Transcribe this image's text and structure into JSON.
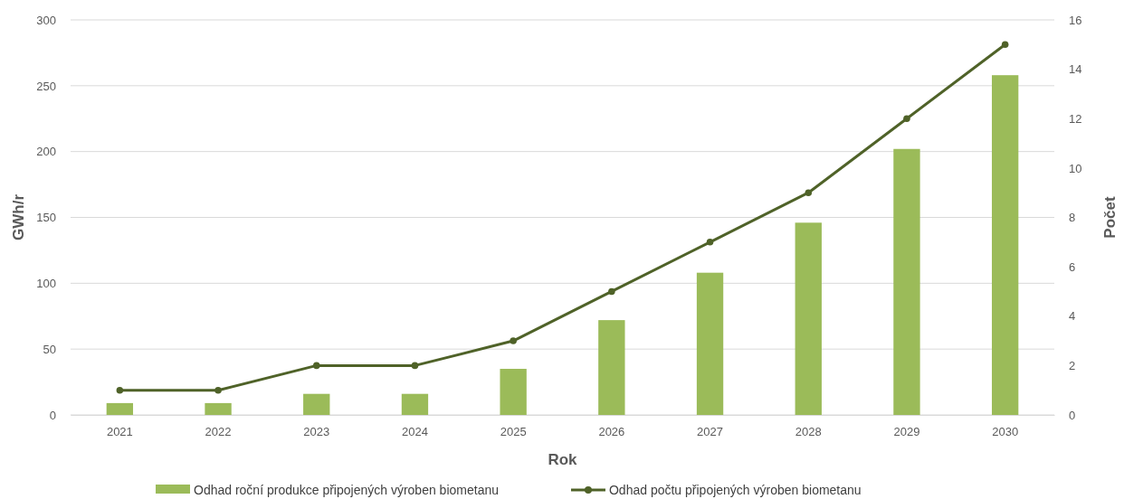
{
  "chart_data": {
    "type": "bar",
    "xlabel": "Rok",
    "ylabel": "GWh/r",
    "y2label": "Počet",
    "categories": [
      "2021",
      "2022",
      "2023",
      "2024",
      "2025",
      "2026",
      "2027",
      "2028",
      "2029",
      "2030"
    ],
    "series": [
      {
        "name": "Odhad roční produkce připojených výroben biometanu",
        "color": "#9bbb59",
        "values": [
          9,
          9,
          16,
          16,
          35,
          72,
          108,
          146,
          202,
          258
        ]
      },
      {
        "name": "Odhad počtu připojených výroben biometanu",
        "type": "line",
        "axis": "y2",
        "color": "#4f6228",
        "marker": "circle",
        "values": [
          1,
          1,
          2,
          2,
          3,
          5,
          7,
          9,
          12,
          15
        ]
      }
    ],
    "ylim": [
      0,
      300
    ],
    "yticks": [
      0,
      50,
      100,
      150,
      200,
      250,
      300
    ],
    "y2lim": [
      0,
      16
    ],
    "y2ticks": [
      0,
      2,
      4,
      6,
      8,
      10,
      12,
      14,
      16
    ],
    "grid": "y",
    "legend": "bottom"
  }
}
